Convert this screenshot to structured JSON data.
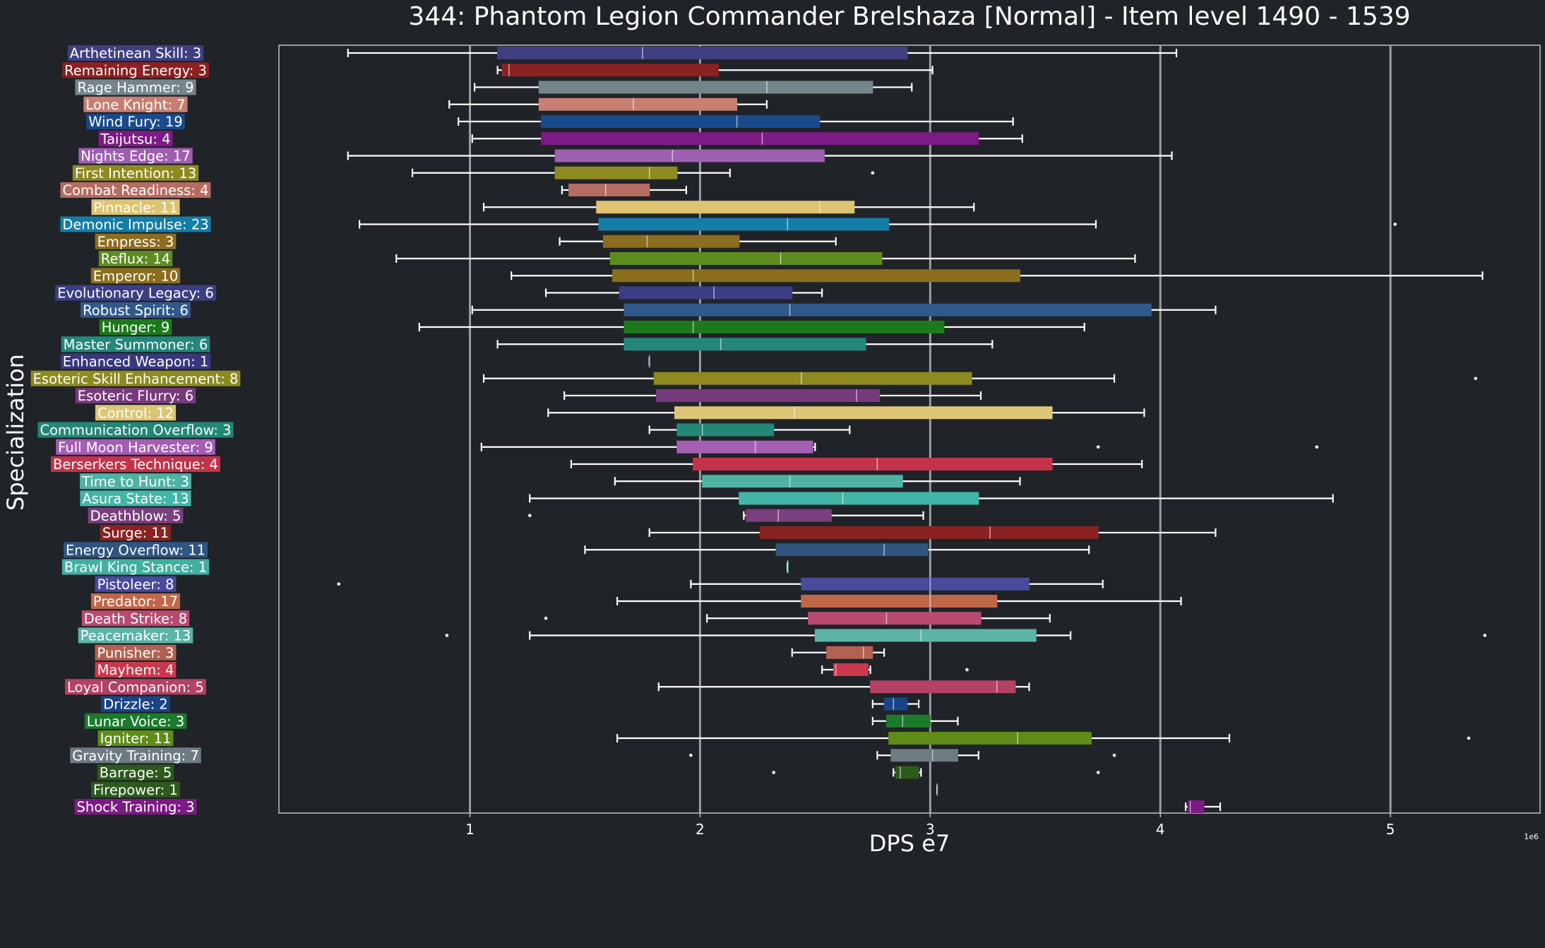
{
  "chart_data": {
    "type": "box",
    "orientation": "horizontal",
    "title": "344: Phantom Legion Commander Brelshaza [Normal] - Item level 1490 - 1539",
    "xlabel": "DPS e7",
    "ylabel": "Specialization",
    "x_offset_text": "1e6",
    "xlim": [
      0.17,
      5.65
    ],
    "xticks": [
      1,
      2,
      3,
      4,
      5
    ],
    "grid": "vertical",
    "rows": [
      {
        "label": "Arthetinean Skill: 3",
        "color": "#3f3f80",
        "whisker_low": 0.47,
        "q1": 1.12,
        "median": 1.75,
        "q3": 2.9,
        "whisker_high": 4.07,
        "outliers": []
      },
      {
        "label": "Remaining Energy: 3",
        "color": "#8b2121",
        "whisker_low": 1.12,
        "q1": 1.14,
        "median": 1.17,
        "q3": 2.08,
        "whisker_high": 3.01,
        "outliers": []
      },
      {
        "label": "Rage Hammer: 9",
        "color": "#74868c",
        "whisker_low": 1.02,
        "q1": 1.3,
        "median": 2.29,
        "q3": 2.75,
        "whisker_high": 2.92,
        "outliers": []
      },
      {
        "label": "Lone Knight: 7",
        "color": "#c77f72",
        "whisker_low": 0.91,
        "q1": 1.3,
        "median": 1.71,
        "q3": 2.16,
        "whisker_high": 2.29,
        "outliers": []
      },
      {
        "label": "Wind Fury: 19",
        "color": "#1a4a8c",
        "whisker_low": 0.95,
        "q1": 1.31,
        "median": 2.16,
        "q3": 2.52,
        "whisker_high": 3.36,
        "outliers": []
      },
      {
        "label": "Taijutsu: 4",
        "color": "#7d1a85",
        "whisker_low": 1.01,
        "q1": 1.31,
        "median": 2.27,
        "q3": 3.21,
        "whisker_high": 3.4,
        "outliers": []
      },
      {
        "label": "Nights Edge: 17",
        "color": "#9f5fb0",
        "whisker_low": 0.47,
        "q1": 1.37,
        "median": 1.88,
        "q3": 2.54,
        "whisker_high": 4.05,
        "outliers": []
      },
      {
        "label": "First Intention: 13",
        "color": "#8e8a20",
        "whisker_low": 0.75,
        "q1": 1.37,
        "median": 1.78,
        "q3": 1.9,
        "whisker_high": 2.13,
        "outliers": [
          2.75
        ]
      },
      {
        "label": "Combat Readiness: 4",
        "color": "#b56c61",
        "whisker_low": 1.4,
        "q1": 1.43,
        "median": 1.59,
        "q3": 1.78,
        "whisker_high": 1.94,
        "outliers": []
      },
      {
        "label": "Pinnacle: 11",
        "color": "#ddc372",
        "whisker_low": 1.06,
        "q1": 1.55,
        "median": 2.52,
        "q3": 2.67,
        "whisker_high": 3.19,
        "outliers": []
      },
      {
        "label": "Demonic Impulse: 23",
        "color": "#147ea8",
        "whisker_low": 0.52,
        "q1": 1.56,
        "median": 2.38,
        "q3": 2.82,
        "whisker_high": 3.72,
        "outliers": [
          5.02
        ]
      },
      {
        "label": "Empress: 3",
        "color": "#8c6d1f",
        "whisker_low": 1.39,
        "q1": 1.58,
        "median": 1.77,
        "q3": 2.17,
        "whisker_high": 2.59,
        "outliers": []
      },
      {
        "label": "Reflux: 14",
        "color": "#5f8c1f",
        "whisker_low": 0.68,
        "q1": 1.61,
        "median": 2.35,
        "q3": 2.79,
        "whisker_high": 3.89,
        "outliers": []
      },
      {
        "label": "Emperor: 10",
        "color": "#8a6e1d",
        "whisker_low": 1.18,
        "q1": 1.62,
        "median": 1.97,
        "q3": 3.39,
        "whisker_high": 5.4,
        "outliers": []
      },
      {
        "label": "Evolutionary Legacy: 6",
        "color": "#3a3f85",
        "whisker_low": 1.33,
        "q1": 1.65,
        "median": 2.06,
        "q3": 2.4,
        "whisker_high": 2.53,
        "outliers": []
      },
      {
        "label": "Robust Spirit: 6",
        "color": "#305a8a",
        "whisker_low": 1.01,
        "q1": 1.67,
        "median": 2.39,
        "q3": 3.96,
        "whisker_high": 4.24,
        "outliers": []
      },
      {
        "label": "Hunger: 9",
        "color": "#1c7a1c",
        "whisker_low": 0.78,
        "q1": 1.67,
        "median": 1.97,
        "q3": 3.06,
        "whisker_high": 3.67,
        "outliers": []
      },
      {
        "label": "Master Summoner: 6",
        "color": "#23877a",
        "whisker_low": 1.12,
        "q1": 1.67,
        "median": 2.09,
        "q3": 2.72,
        "whisker_high": 3.27,
        "outliers": []
      },
      {
        "label": "Enhanced Weapon: 1",
        "color": "#38387e",
        "whisker_low": 1.78,
        "q1": 1.78,
        "median": 1.78,
        "q3": 1.78,
        "whisker_high": 1.78,
        "outliers": []
      },
      {
        "label": "Esoteric Skill Enhancement: 8",
        "color": "#8d8b20",
        "whisker_low": 1.06,
        "q1": 1.8,
        "median": 2.44,
        "q3": 3.18,
        "whisker_high": 3.8,
        "outliers": [
          5.37
        ]
      },
      {
        "label": "Esoteric Flurry: 6",
        "color": "#773a7c",
        "whisker_low": 1.41,
        "q1": 1.81,
        "median": 2.68,
        "q3": 2.78,
        "whisker_high": 3.22,
        "outliers": []
      },
      {
        "label": "Control: 12",
        "color": "#dcc676",
        "whisker_low": 1.34,
        "q1": 1.89,
        "median": 2.41,
        "q3": 3.53,
        "whisker_high": 3.93,
        "outliers": []
      },
      {
        "label": "Communication Overflow: 3",
        "color": "#238775",
        "whisker_low": 1.78,
        "q1": 1.9,
        "median": 2.01,
        "q3": 2.32,
        "whisker_high": 2.65,
        "outliers": []
      },
      {
        "label": "Full Moon Harvester: 9",
        "color": "#a45eb4",
        "whisker_low": 1.05,
        "q1": 1.9,
        "median": 2.24,
        "q3": 2.49,
        "whisker_high": 2.5,
        "outliers": [
          3.73,
          4.68
        ]
      },
      {
        "label": "Berserkers Technique: 4",
        "color": "#c4334a",
        "whisker_low": 1.44,
        "q1": 1.97,
        "median": 2.77,
        "q3": 3.53,
        "whisker_high": 3.92,
        "outliers": []
      },
      {
        "label": "Time to Hunt: 3",
        "color": "#4fb3a4",
        "whisker_low": 1.63,
        "q1": 2.01,
        "median": 2.39,
        "q3": 2.88,
        "whisker_high": 3.39,
        "outliers": []
      },
      {
        "label": "Asura State: 13",
        "color": "#41b6a7",
        "whisker_low": 1.26,
        "q1": 2.17,
        "median": 2.62,
        "q3": 3.21,
        "whisker_high": 4.75,
        "outliers": []
      },
      {
        "label": "Deathblow: 5",
        "color": "#7a3f7e",
        "whisker_low": 2.19,
        "q1": 2.2,
        "median": 2.34,
        "q3": 2.57,
        "whisker_high": 2.97,
        "outliers": [
          1.26
        ]
      },
      {
        "label": "Surge: 11",
        "color": "#8a2222",
        "whisker_low": 1.78,
        "q1": 2.26,
        "median": 3.26,
        "q3": 3.73,
        "whisker_high": 4.24,
        "outliers": []
      },
      {
        "label": "Energy Overflow: 11",
        "color": "#2f5580",
        "whisker_low": 1.5,
        "q1": 2.33,
        "median": 2.8,
        "q3": 2.99,
        "whisker_high": 3.69,
        "outliers": []
      },
      {
        "label": "Brawl King Stance: 1",
        "color": "#41b0a0",
        "whisker_low": 2.38,
        "q1": 2.38,
        "median": 2.38,
        "q3": 2.38,
        "whisker_high": 2.38,
        "outliers": []
      },
      {
        "label": "Pistoleer: 8",
        "color": "#484a9c",
        "whisker_low": 1.96,
        "q1": 2.44,
        "median": 3.0,
        "q3": 3.43,
        "whisker_high": 3.75,
        "outliers": [
          0.43
        ]
      },
      {
        "label": "Predator: 17",
        "color": "#c0674a",
        "whisker_low": 1.64,
        "q1": 2.44,
        "median": 3.0,
        "q3": 3.29,
        "whisker_high": 4.09,
        "outliers": []
      },
      {
        "label": "Death Strike: 8",
        "color": "#b94a72",
        "whisker_low": 2.03,
        "q1": 2.47,
        "median": 2.81,
        "q3": 3.22,
        "whisker_high": 3.52,
        "outliers": [
          1.33
        ]
      },
      {
        "label": "Peacemaker: 13",
        "color": "#5bb4a5",
        "whisker_low": 1.26,
        "q1": 2.5,
        "median": 2.96,
        "q3": 3.46,
        "whisker_high": 3.61,
        "outliers": [
          0.9,
          5.41
        ]
      },
      {
        "label": "Punisher: 3",
        "color": "#b36152",
        "whisker_low": 2.4,
        "q1": 2.55,
        "median": 2.71,
        "q3": 2.75,
        "whisker_high": 2.8,
        "outliers": []
      },
      {
        "label": "Mayhem: 4",
        "color": "#c9394e",
        "whisker_low": 2.53,
        "q1": 2.58,
        "median": 2.59,
        "q3": 2.73,
        "whisker_high": 2.74,
        "outliers": [
          3.16
        ]
      },
      {
        "label": "Loyal Companion: 5",
        "color": "#b34265",
        "whisker_low": 1.82,
        "q1": 2.74,
        "median": 3.29,
        "q3": 3.37,
        "whisker_high": 3.43,
        "outliers": []
      },
      {
        "label": "Drizzle: 2",
        "color": "#1a4585",
        "whisker_low": 2.75,
        "q1": 2.8,
        "median": 2.84,
        "q3": 2.9,
        "whisker_high": 2.95,
        "outliers": []
      },
      {
        "label": "Lunar Voice: 3",
        "color": "#1b7a2c",
        "whisker_low": 2.75,
        "q1": 2.81,
        "median": 2.88,
        "q3": 3.0,
        "whisker_high": 3.12,
        "outliers": []
      },
      {
        "label": "Igniter: 11",
        "color": "#5e8c17",
        "whisker_low": 1.64,
        "q1": 2.82,
        "median": 3.38,
        "q3": 3.7,
        "whisker_high": 4.3,
        "outliers": [
          5.34
        ]
      },
      {
        "label": "Gravity Training: 7",
        "color": "#6d7b82",
        "whisker_low": 2.77,
        "q1": 2.83,
        "median": 3.01,
        "q3": 3.12,
        "whisker_high": 3.21,
        "outliers": [
          1.96,
          3.8
        ]
      },
      {
        "label": "Barrage: 5",
        "color": "#2c5a1c",
        "whisker_low": 2.84,
        "q1": 2.85,
        "median": 2.87,
        "q3": 2.95,
        "whisker_high": 2.96,
        "outliers": [
          2.32,
          3.73
        ]
      },
      {
        "label": "Firepower: 1",
        "color": "#2c5a1c",
        "whisker_low": 3.03,
        "q1": 3.03,
        "median": 3.03,
        "q3": 3.03,
        "whisker_high": 3.03,
        "outliers": []
      },
      {
        "label": "Shock Training: 3",
        "color": "#7d1a85",
        "whisker_low": 4.11,
        "q1": 4.12,
        "median": 4.13,
        "q3": 4.19,
        "whisker_high": 4.26,
        "outliers": []
      }
    ]
  }
}
